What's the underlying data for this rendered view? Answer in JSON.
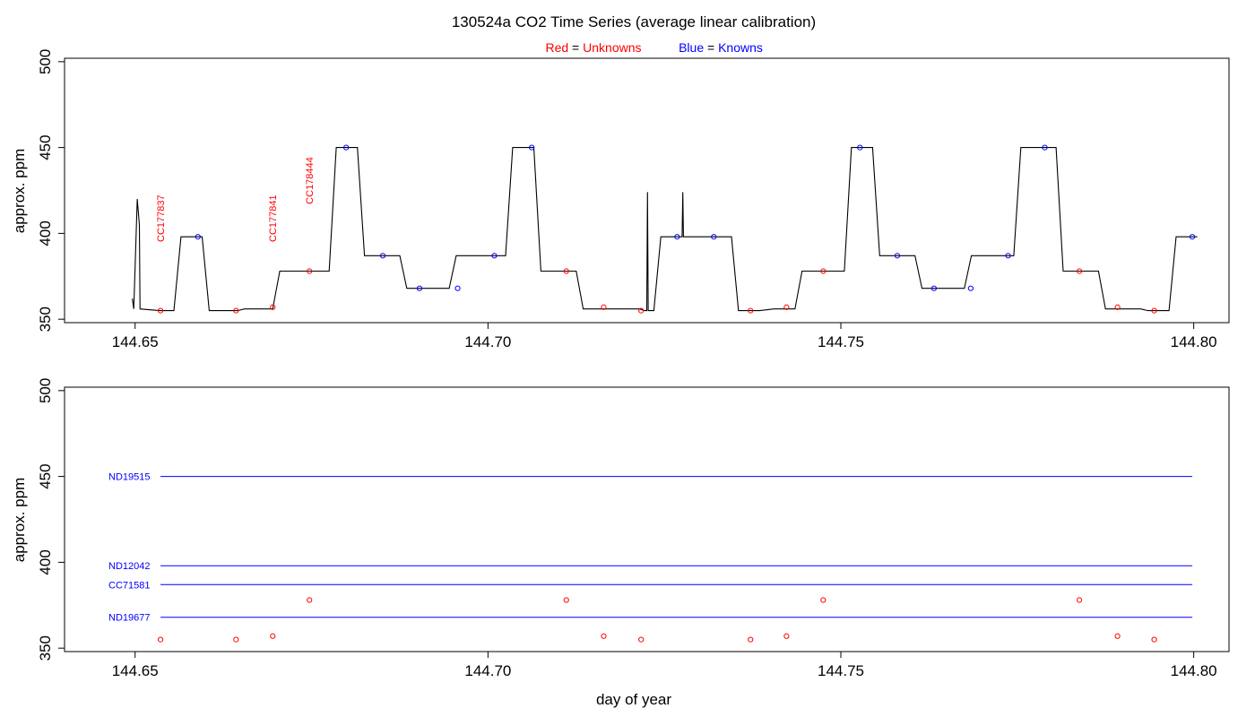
{
  "chart_data": {
    "type": "line",
    "title": "130524a   CO2 Time Series (average linear calibration)",
    "legend": {
      "red": {
        "prefix": "Red",
        "eq": " = ",
        "name": "Unknowns",
        "color": "#ff0000"
      },
      "blue": {
        "prefix": "Blue",
        "eq": " = ",
        "name": "Knowns",
        "color": "#0000ff"
      }
    },
    "xlabel": "day of year",
    "ylabel": "approx. ppm",
    "xlim": [
      144.64,
      144.805
    ],
    "ylim": [
      348,
      502
    ],
    "xticks": [
      "144.65",
      "144.70",
      "144.75",
      "144.80"
    ],
    "yticks": [
      "350",
      "400",
      "450",
      "500"
    ],
    "colors": {
      "line": "#000000",
      "unknown": "#ff0000",
      "known": "#0000ff"
    },
    "top_panel": {
      "series_trace": [
        [
          144.6496,
          362
        ],
        [
          144.6498,
          356
        ],
        [
          144.65,
          380
        ],
        [
          144.6503,
          420
        ],
        [
          144.6506,
          405
        ],
        [
          144.6507,
          356
        ],
        [
          144.6535,
          355
        ],
        [
          144.6555,
          355
        ],
        [
          144.6565,
          398
        ],
        [
          144.6595,
          398
        ],
        [
          144.6605,
          355
        ],
        [
          144.6645,
          355
        ],
        [
          144.6655,
          356
        ],
        [
          144.6695,
          356
        ],
        [
          144.6705,
          378
        ],
        [
          144.6735,
          378
        ],
        [
          144.6775,
          378
        ],
        [
          144.6785,
          450
        ],
        [
          144.6815,
          450
        ],
        [
          144.6825,
          387
        ],
        [
          144.6855,
          387
        ],
        [
          144.6875,
          387
        ],
        [
          144.6885,
          368
        ],
        [
          144.6915,
          368
        ],
        [
          144.6945,
          368
        ],
        [
          144.6955,
          387
        ],
        [
          144.6995,
          387
        ],
        [
          144.7025,
          387
        ],
        [
          144.7035,
          450
        ],
        [
          144.7065,
          450
        ],
        [
          144.7075,
          378
        ],
        [
          144.7105,
          378
        ],
        [
          144.7125,
          378
        ],
        [
          144.7135,
          356
        ],
        [
          144.7165,
          356
        ],
        [
          144.7215,
          356
        ],
        [
          144.7222,
          355
        ],
        [
          144.7225,
          355
        ],
        [
          144.7226,
          424
        ],
        [
          144.7227,
          355
        ],
        [
          144.7235,
          355
        ],
        [
          144.7245,
          398
        ],
        [
          144.7275,
          398
        ],
        [
          144.7276,
          424
        ],
        [
          144.7277,
          398
        ],
        [
          144.7325,
          398
        ],
        [
          144.7345,
          398
        ],
        [
          144.7355,
          355
        ],
        [
          144.7385,
          355
        ],
        [
          144.7405,
          356
        ],
        [
          144.7435,
          356
        ],
        [
          144.7445,
          378
        ],
        [
          144.7475,
          378
        ],
        [
          144.7505,
          378
        ],
        [
          144.7515,
          450
        ],
        [
          144.7545,
          450
        ],
        [
          144.7555,
          387
        ],
        [
          144.7585,
          387
        ],
        [
          144.7605,
          387
        ],
        [
          144.7615,
          368
        ],
        [
          144.7645,
          368
        ],
        [
          144.7675,
          368
        ],
        [
          144.7685,
          387
        ],
        [
          144.7715,
          387
        ],
        [
          144.7745,
          387
        ],
        [
          144.7755,
          450
        ],
        [
          144.7785,
          450
        ],
        [
          144.7805,
          450
        ],
        [
          144.7815,
          378
        ],
        [
          144.7845,
          378
        ],
        [
          144.7865,
          378
        ],
        [
          144.7875,
          356
        ],
        [
          144.7905,
          356
        ],
        [
          144.7925,
          356
        ],
        [
          144.7935,
          355
        ],
        [
          144.7965,
          355
        ],
        [
          144.7975,
          398
        ],
        [
          144.8005,
          398
        ]
      ],
      "unknown_points": [
        [
          144.6536,
          355
        ],
        [
          144.6643,
          355
        ],
        [
          144.6695,
          357
        ],
        [
          144.6747,
          378
        ],
        [
          144.7111,
          378
        ],
        [
          144.7164,
          357
        ],
        [
          144.7217,
          355
        ],
        [
          144.7372,
          355
        ],
        [
          144.7423,
          357
        ],
        [
          144.7475,
          378
        ],
        [
          144.7838,
          378
        ],
        [
          144.7892,
          357
        ],
        [
          144.7944,
          355
        ]
      ],
      "known_points": [
        [
          144.6589,
          398
        ],
        [
          144.6799,
          450
        ],
        [
          144.6851,
          387
        ],
        [
          144.6903,
          368
        ],
        [
          144.6957,
          368
        ],
        [
          144.7009,
          387
        ],
        [
          144.7062,
          450
        ],
        [
          144.7268,
          398
        ],
        [
          144.732,
          398
        ],
        [
          144.7527,
          450
        ],
        [
          144.758,
          387
        ],
        [
          144.7632,
          368
        ],
        [
          144.7684,
          368
        ],
        [
          144.7737,
          387
        ],
        [
          144.7789,
          450
        ],
        [
          144.7998,
          398
        ]
      ],
      "annotations": [
        {
          "text": "CC177837",
          "x": 144.6536,
          "y": 395
        },
        {
          "text": "CC177841",
          "x": 144.6695,
          "y": 395
        },
        {
          "text": "CC178444",
          "x": 144.6747,
          "y": 417
        }
      ]
    },
    "bottom_panel": {
      "reference_lines": [
        {
          "name": "ND19515",
          "y": 450,
          "x": [
            144.6536,
            144.7998
          ]
        },
        {
          "name": "ND12042",
          "y": 398,
          "x": [
            144.6536,
            144.7998
          ]
        },
        {
          "name": "CC71581",
          "y": 387,
          "x": [
            144.6536,
            144.7998
          ]
        },
        {
          "name": "ND19677",
          "y": 368,
          "x": [
            144.6536,
            144.7998
          ]
        }
      ],
      "unknown_points": [
        [
          144.6536,
          355
        ],
        [
          144.6643,
          355
        ],
        [
          144.6695,
          357
        ],
        [
          144.6747,
          378
        ],
        [
          144.7111,
          378
        ],
        [
          144.7164,
          357
        ],
        [
          144.7217,
          355
        ],
        [
          144.7372,
          355
        ],
        [
          144.7423,
          357
        ],
        [
          144.7475,
          378
        ],
        [
          144.7838,
          378
        ],
        [
          144.7892,
          357
        ],
        [
          144.7944,
          355
        ]
      ]
    }
  }
}
